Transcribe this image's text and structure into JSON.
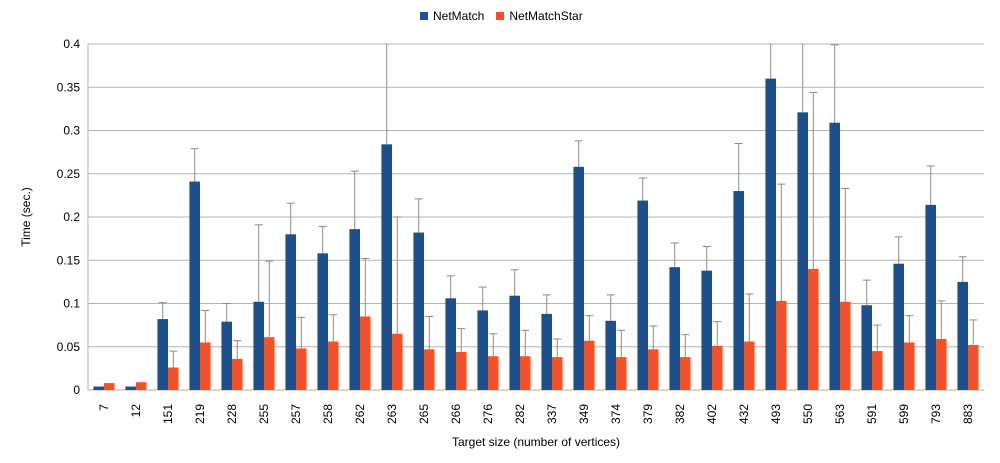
{
  "chart_data": {
    "type": "bar",
    "xlabel": "Target size (number of vertices)",
    "ylabel": "Time (sec.)",
    "ylim": [
      0,
      0.4
    ],
    "yticks": [
      "0",
      "0.05",
      "0.1",
      "0.15",
      "0.2",
      "0.25",
      "0.3",
      "0.35",
      "0.4"
    ],
    "grid": "horizontal",
    "legend_position": "top-center",
    "error_bars": true,
    "categories": [
      "7",
      "12",
      "151",
      "219",
      "228",
      "255",
      "257",
      "258",
      "262",
      "263",
      "265",
      "266",
      "276",
      "282",
      "337",
      "349",
      "374",
      "379",
      "382",
      "402",
      "432",
      "493",
      "550",
      "563",
      "591",
      "599",
      "793",
      "883"
    ],
    "series": [
      {
        "name": "NetMatch",
        "color": "#1f4e8c",
        "values": [
          0.004,
          0.004,
          0.082,
          0.241,
          0.079,
          0.102,
          0.18,
          0.158,
          0.186,
          0.284,
          0.182,
          0.106,
          0.092,
          0.109,
          0.088,
          0.258,
          0.08,
          0.219,
          0.142,
          0.138,
          0.23,
          0.36,
          0.321,
          0.309,
          0.098,
          0.146,
          0.214,
          0.125
        ],
        "errors": [
          0,
          0,
          0.019,
          0.038,
          0.021,
          0.089,
          0.036,
          0.031,
          0.067,
          0.12,
          0.039,
          0.026,
          0.027,
          0.03,
          0.022,
          0.03,
          0.03,
          0.026,
          0.028,
          0.028,
          0.055,
          0.09,
          0.09,
          0.09,
          0.029,
          0.031,
          0.045,
          0.029
        ]
      },
      {
        "name": "NetMatchStar",
        "color": "#f0522a",
        "values": [
          0.008,
          0.009,
          0.026,
          0.055,
          0.036,
          0.061,
          0.048,
          0.056,
          0.085,
          0.065,
          0.047,
          0.044,
          0.039,
          0.039,
          0.038,
          0.057,
          0.038,
          0.047,
          0.038,
          0.051,
          0.056,
          0.103,
          0.14,
          0.102,
          0.045,
          0.055,
          0.059,
          0.052
        ],
        "errors": [
          0,
          0,
          0.019,
          0.037,
          0.021,
          0.088,
          0.036,
          0.031,
          0.067,
          0.135,
          0.038,
          0.027,
          0.026,
          0.03,
          0.021,
          0.029,
          0.031,
          0.027,
          0.026,
          0.028,
          0.055,
          0.135,
          0.204,
          0.131,
          0.03,
          0.031,
          0.044,
          0.029
        ]
      }
    ]
  }
}
